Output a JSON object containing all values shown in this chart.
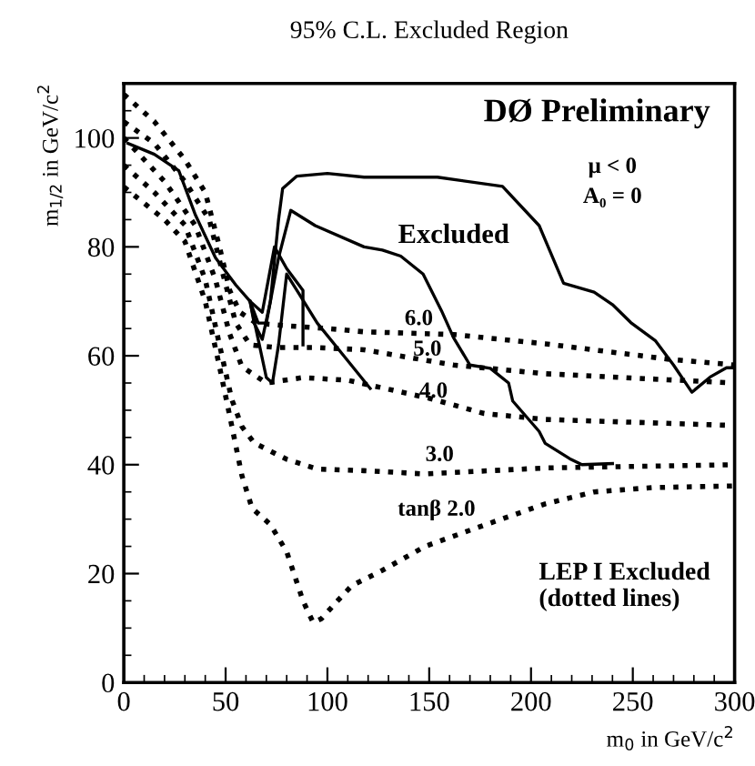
{
  "chart_data": {
    "type": "line",
    "title": "95% C.L. Excluded Region",
    "xlabel": "m$_{0}$ in GeV/c$^{2}$",
    "ylabel": "m$_{1/2}$ in GeV/c$^{2}$",
    "xlim": [
      0,
      300
    ],
    "ylim": [
      0,
      110
    ],
    "xticks": [
      0,
      50,
      100,
      150,
      200,
      250,
      300
    ],
    "yticks": [
      0,
      20,
      40,
      60,
      80,
      100
    ],
    "grid": false,
    "legend": false,
    "marker": "none",
    "series": [
      {
        "color": "#000000",
        "line_style": "solid",
        "x": [
          2,
          15,
          27,
          35,
          45,
          55,
          62,
          64,
          68,
          72,
          76,
          78,
          85,
          100,
          118,
          154,
          186,
          204,
          216,
          231,
          240,
          249,
          261,
          270,
          279,
          288,
          296,
          300
        ],
        "values": [
          99,
          97,
          94,
          86,
          78,
          73,
          70,
          66,
          63,
          70,
          85,
          90.7,
          93,
          93.5,
          92.8,
          92.8,
          91.1,
          83.9,
          73.3,
          71.7,
          69.4,
          66.1,
          62.8,
          58.3,
          53.3,
          56.1,
          57.8,
          57.8
        ]
      },
      {
        "color": "#000000",
        "line_style": "solid",
        "x": [
          62,
          66,
          70,
          76,
          82,
          94,
          118,
          127,
          136,
          147,
          156,
          162,
          170,
          180,
          189,
          191,
          204,
          207,
          219,
          225,
          240
        ],
        "values": [
          70,
          66,
          66,
          78,
          86.7,
          83.9,
          80,
          79.4,
          78.3,
          75,
          68.3,
          63.3,
          58.3,
          57.7,
          55,
          51.7,
          46.1,
          43.9,
          41.1,
          40,
          40.2
        ]
      },
      {
        "color": "#000000",
        "line_style": "solid",
        "x": [
          62,
          66,
          70,
          73,
          76,
          80,
          85,
          95,
          108,
          121
        ],
        "values": [
          70,
          63,
          56,
          55,
          62,
          75,
          72,
          66,
          60,
          54
        ]
      },
      {
        "color": "#000000",
        "line_style": "solid",
        "x": [
          62,
          68,
          74,
          80,
          88,
          88
        ],
        "values": [
          70,
          68,
          80,
          76,
          72,
          62
        ]
      },
      {
        "color": "#000000",
        "line_style": "dotted",
        "x": [
          0,
          15,
          30,
          40,
          47,
          52,
          57,
          65,
          80,
          100,
          118,
          162,
          207,
          267,
          300
        ],
        "values": [
          108,
          103,
          96,
          90,
          80,
          72,
          68,
          66,
          65.5,
          65,
          64.4,
          63.9,
          62.2,
          59.4,
          58.3
        ]
      },
      {
        "color": "#000000",
        "line_style": "dotted",
        "x": [
          0,
          15,
          30,
          42,
          48,
          55,
          62,
          75,
          95,
          118,
          162,
          207,
          267,
          300
        ],
        "values": [
          103,
          99,
          92,
          85,
          76,
          66,
          62,
          61.5,
          61.5,
          61.1,
          58.3,
          56.7,
          55.6,
          55
        ]
      },
      {
        "color": "#000000",
        "line_style": "dotted",
        "x": [
          0,
          20,
          35,
          45,
          52,
          58,
          70,
          88,
          110,
          150,
          177,
          207,
          300
        ],
        "values": [
          100,
          92,
          84,
          74,
          64,
          58,
          55,
          56,
          55.5,
          52.2,
          49.4,
          48.3,
          47.2
        ]
      },
      {
        "color": "#000000",
        "line_style": "dotted",
        "x": [
          0,
          15,
          30,
          40,
          47,
          53,
          58,
          64,
          80,
          95,
          118,
          148,
          207,
          300
        ],
        "values": [
          95,
          90,
          84,
          74,
          62,
          52,
          47,
          44,
          41,
          39.2,
          38.9,
          38.3,
          39.4,
          40
        ]
      },
      {
        "color": "#000000",
        "line_style": "dotted",
        "x": [
          0,
          10,
          20,
          30,
          40,
          47,
          52,
          58,
          63,
          72,
          80,
          88,
          93,
          97,
          105,
          112,
          127,
          148,
          177,
          207,
          231,
          260,
          300
        ],
        "values": [
          91,
          88,
          85,
          81,
          70,
          58,
          49,
          38,
          32,
          29,
          24,
          15,
          11,
          11.7,
          15,
          17.8,
          20.6,
          25,
          28.9,
          32.8,
          35,
          35.8,
          36.1
        ]
      }
    ],
    "annotations": [
      "Excluded",
      "6.0",
      "5.0",
      "4.0",
      "3.0",
      "tanβ 2.0",
      "DØ Preliminary",
      "μ < 0",
      "A₀ = 0",
      "LEP I Excluded\n(dotted lines)"
    ]
  }
}
